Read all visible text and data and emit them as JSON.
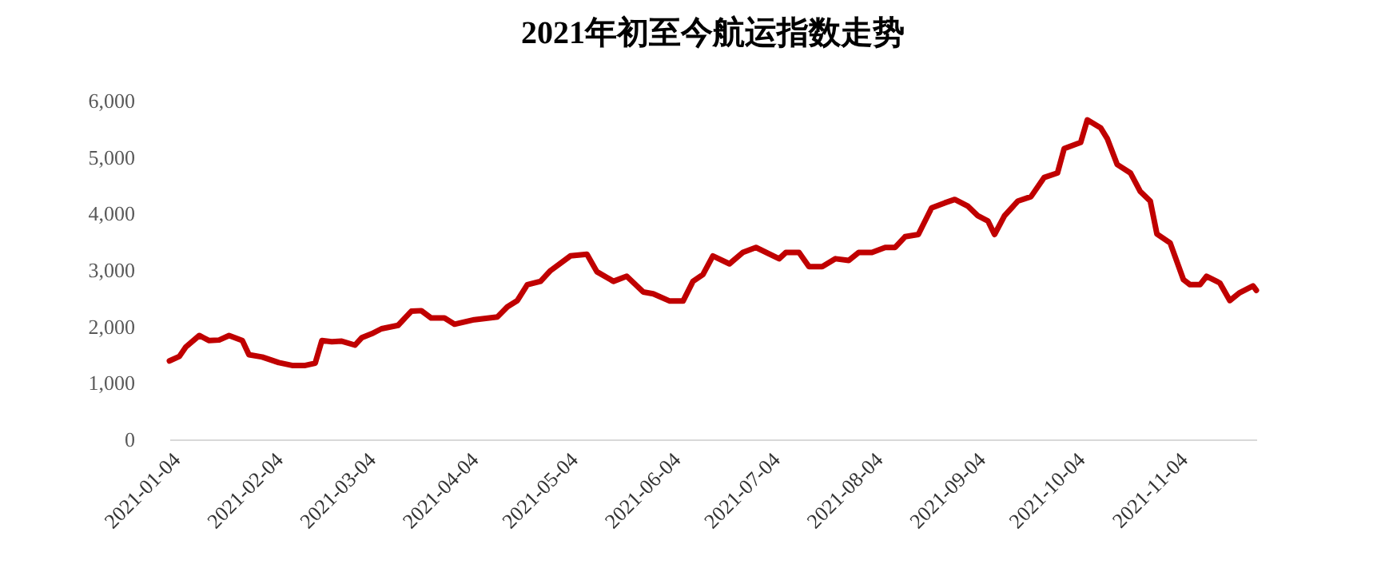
{
  "chart_data": {
    "type": "line",
    "title": "2021年初至今航运指数走势",
    "x": [
      "2021-01-04",
      "2021-01-07",
      "2021-01-09",
      "2021-01-13",
      "2021-01-16",
      "2021-01-19",
      "2021-01-22",
      "2021-01-26",
      "2021-01-28",
      "2021-02-01",
      "2021-02-06",
      "2021-02-10",
      "2021-02-14",
      "2021-02-17",
      "2021-02-19",
      "2021-02-22",
      "2021-02-25",
      "2021-03-01",
      "2021-03-03",
      "2021-03-06",
      "2021-03-09",
      "2021-03-14",
      "2021-03-18",
      "2021-03-21",
      "2021-03-24",
      "2021-03-28",
      "2021-03-31",
      "2021-04-06",
      "2021-04-13",
      "2021-04-16",
      "2021-04-19",
      "2021-04-22",
      "2021-04-26",
      "2021-04-29",
      "2021-05-05",
      "2021-05-10",
      "2021-05-13",
      "2021-05-18",
      "2021-05-22",
      "2021-05-27",
      "2021-05-30",
      "2021-06-04",
      "2021-06-08",
      "2021-06-11",
      "2021-06-14",
      "2021-06-17",
      "2021-06-22",
      "2021-06-26",
      "2021-06-30",
      "2021-07-07",
      "2021-07-09",
      "2021-07-13",
      "2021-07-16",
      "2021-07-20",
      "2021-07-24",
      "2021-07-28",
      "2021-07-31",
      "2021-08-04",
      "2021-08-08",
      "2021-08-11",
      "2021-08-14",
      "2021-08-18",
      "2021-08-22",
      "2021-08-26",
      "2021-08-29",
      "2021-09-02",
      "2021-09-05",
      "2021-09-08",
      "2021-09-10",
      "2021-09-13",
      "2021-09-17",
      "2021-09-21",
      "2021-09-25",
      "2021-09-29",
      "2021-10-01",
      "2021-10-06",
      "2021-10-08",
      "2021-10-12",
      "2021-10-14",
      "2021-10-17",
      "2021-10-21",
      "2021-10-24",
      "2021-10-27",
      "2021-10-29",
      "2021-11-02",
      "2021-11-06",
      "2021-11-08",
      "2021-11-11",
      "2021-11-13",
      "2021-11-17",
      "2021-11-20",
      "2021-11-23",
      "2021-11-27",
      "2021-11-28"
    ],
    "series": [
      {
        "color": "#c00000",
        "values": [
          1390,
          1470,
          1640,
          1840,
          1750,
          1760,
          1840,
          1750,
          1500,
          1460,
          1360,
          1310,
          1310,
          1350,
          1750,
          1730,
          1740,
          1670,
          1800,
          1870,
          1960,
          2020,
          2270,
          2280,
          2150,
          2150,
          2040,
          2120,
          2170,
          2350,
          2460,
          2740,
          2800,
          2990,
          3250,
          3280,
          2970,
          2800,
          2890,
          2610,
          2580,
          2450,
          2450,
          2800,
          2920,
          3250,
          3110,
          3310,
          3400,
          3200,
          3310,
          3310,
          3060,
          3060,
          3200,
          3170,
          3310,
          3310,
          3400,
          3400,
          3590,
          3630,
          4100,
          4190,
          4250,
          4130,
          3960,
          3870,
          3630,
          3960,
          4220,
          4300,
          4640,
          4720,
          5150,
          5260,
          5660,
          5520,
          5330,
          4870,
          4720,
          4390,
          4220,
          3640,
          3480,
          2830,
          2740,
          2740,
          2890,
          2770,
          2460,
          2600,
          2720,
          2640
        ]
      }
    ],
    "xlim": [
      "2021-01-04",
      "2021-11-28"
    ],
    "xticks": [
      "2021-01-04",
      "2021-02-04",
      "2021-03-04",
      "2021-04-04",
      "2021-05-04",
      "2021-06-04",
      "2021-07-04",
      "2021-08-04",
      "2021-09-04",
      "2021-10-04",
      "2021-11-04"
    ],
    "ylim": [
      0,
      6000
    ],
    "yticks": [
      0,
      {
        "value": 1000,
        "label": "1,000"
      },
      {
        "value": 2000,
        "label": "2,000"
      },
      {
        "value": 3000,
        "label": "3,000"
      },
      {
        "value": 4000,
        "label": "4,000"
      },
      {
        "value": 5000,
        "label": "5,000"
      },
      {
        "value": 6000,
        "label": "6,000"
      }
    ],
    "grid": false,
    "marker": "none",
    "line_style": "solid"
  }
}
